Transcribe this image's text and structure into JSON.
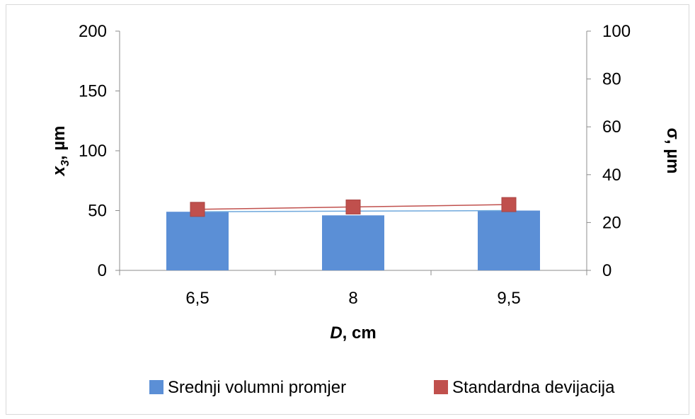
{
  "chart_data": {
    "type": "bar",
    "categories": [
      "6,5",
      "8",
      "9,5"
    ],
    "xlabel_var": "D",
    "xlabel_unit": ", cm",
    "ylabel_left_var": "x",
    "ylabel_left_sub": "3",
    "ylabel_left_unit": ", µm",
    "ylabel_right": "σ, µm",
    "ylim_left": [
      0,
      200
    ],
    "yticks_left": [
      "0",
      "50",
      "100",
      "150",
      "200"
    ],
    "ylim_right": [
      0,
      100
    ],
    "yticks_right": [
      "0",
      "20",
      "40",
      "60",
      "80",
      "100"
    ],
    "grid": false,
    "legend_position": "bottom",
    "series": [
      {
        "name": "Srednji volumni promjer",
        "type": "bar",
        "axis": "left",
        "values": [
          49,
          46,
          50
        ],
        "color": "#5B8FD6"
      },
      {
        "name": "Standardna devijacija",
        "type": "line",
        "axis": "right",
        "marker": "square",
        "values": [
          25.5,
          26.5,
          27.5
        ],
        "color": "#C0504D"
      }
    ],
    "trendline_color": "#6FA8DC"
  }
}
